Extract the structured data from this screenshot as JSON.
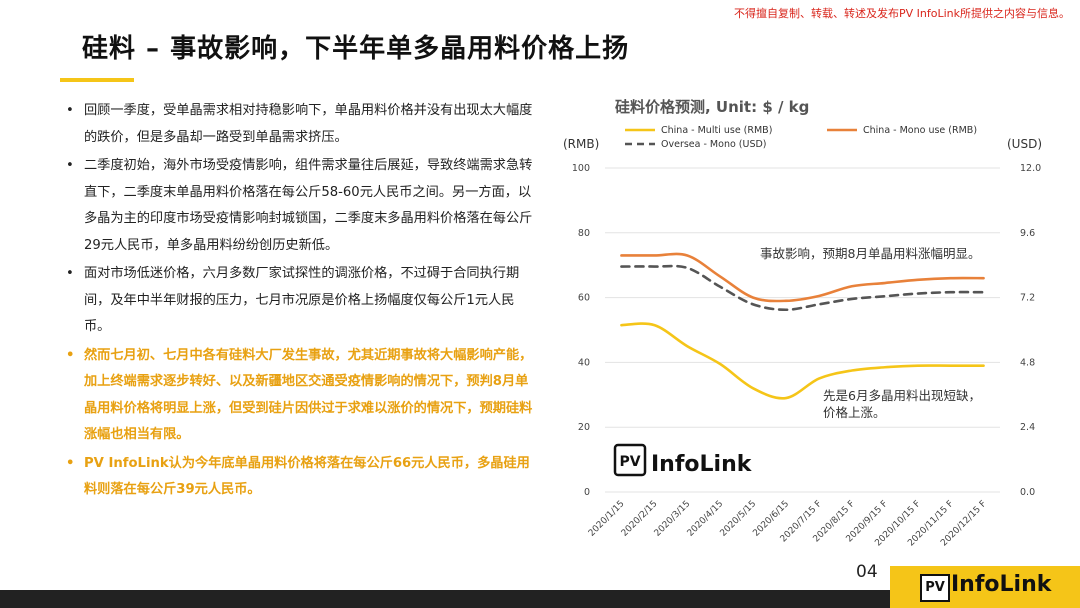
{
  "disclaimer": "不得擅自复制、转载、转述及发布PV InfoLink所提供之内容与信息。",
  "title": "硅料 – 事故影响，下半年单多晶用料价格上扬",
  "bullets": [
    {
      "text": "回顾一季度，受单晶需求相对持稳影响下，单晶用料价格并没有出现太大幅度的跌价，但是多晶却一路受到单晶需求挤压。",
      "highlight": false
    },
    {
      "text": "二季度初始，海外市场受疫情影响，组件需求量往后展延，导致终端需求急转直下，二季度末单晶用料价格落在每公斤58-60元人民币之间。另一方面，以多晶为主的印度市场受疫情影响封城锁国，二季度末多晶用料价格落在每公斤29元人民币，单多晶用料纷纷创历史新低。",
      "highlight": false
    },
    {
      "text": "面对市场低迷价格，六月多数厂家试探性的调涨价格，不过碍于合同执行期间，及年中半年财报的压力，七月市况原是价格上扬幅度仅每公斤1元人民币。",
      "highlight": false
    },
    {
      "text": "然而七月初、七月中各有硅料大厂发生事故，尤其近期事故将大幅影响产能，加上终端需求逐步转好、以及新疆地区交通受疫情影响的情况下，预判8月单晶用料价格将明显上涨，但受到硅片因供过于求难以涨价的情况下，预期硅料涨幅也相当有限。",
      "highlight": true
    },
    {
      "text": "PV InfoLink认为今年底单晶用料价格将落在每公斤66元人民币，多晶硅用料则落在每公斤39元人民币。",
      "highlight": true
    }
  ],
  "logo": {
    "pv": "PV",
    "word": "InfoLink"
  },
  "page_number": "04",
  "colors": {
    "accent": "#f5c518",
    "highlight_text": "#e8a112",
    "multi": "#f5c518",
    "mono": "#e8813a",
    "oversea": "#555555",
    "disclaimer": "#d9261c"
  },
  "chart_data": {
    "type": "line",
    "title": "硅料价格预测, Unit: $ / kg",
    "left_axis_unit": "(RMB)",
    "right_axis_unit": "(USD)",
    "categories": [
      "2020/1/15",
      "2020/2/15",
      "2020/3/15",
      "2020/4/15",
      "2020/5/15",
      "2020/6/15",
      "2020/7/15 F",
      "2020/8/15 F",
      "2020/9/15 F",
      "2020/10/15 F",
      "2020/11/15 F",
      "2020/12/15 F"
    ],
    "ylim": [
      0,
      100
    ],
    "yticks": [
      "0",
      "20",
      "40",
      "60",
      "80",
      "100"
    ],
    "y2lim": [
      0,
      12
    ],
    "y2ticks": [
      "0.0",
      "2.4",
      "4.8",
      "7.2",
      "9.6",
      "12.0"
    ],
    "legend_position": "top",
    "series": [
      {
        "name": "China - Multi use (RMB)",
        "axis": "left",
        "color": "#f5c518",
        "dash": false,
        "values": [
          51.5,
          51.5,
          45,
          39.5,
          32,
          29,
          35,
          37.5,
          38.5,
          39,
          39,
          39
        ]
      },
      {
        "name": "China - Mono use (RMB)",
        "axis": "left",
        "color": "#e8813a",
        "dash": false,
        "values": [
          73,
          73,
          73,
          66.5,
          60,
          59,
          60.5,
          63.5,
          64.5,
          65.5,
          66,
          66
        ]
      },
      {
        "name": "Oversea - Mono (USD)",
        "axis": "right",
        "color": "#555555",
        "dash": true,
        "values": [
          8.35,
          8.35,
          8.3,
          7.6,
          6.95,
          6.75,
          6.95,
          7.15,
          7.25,
          7.35,
          7.4,
          7.4
        ]
      }
    ],
    "annotations": [
      {
        "text": "事故影响，预期8月单晶用料涨幅明显。"
      },
      {
        "text_lines": [
          "先是6月多晶用料出现短缺，",
          "价格上涨。"
        ]
      }
    ],
    "logo": {
      "pv": "PV",
      "word": "InfoLink"
    }
  }
}
